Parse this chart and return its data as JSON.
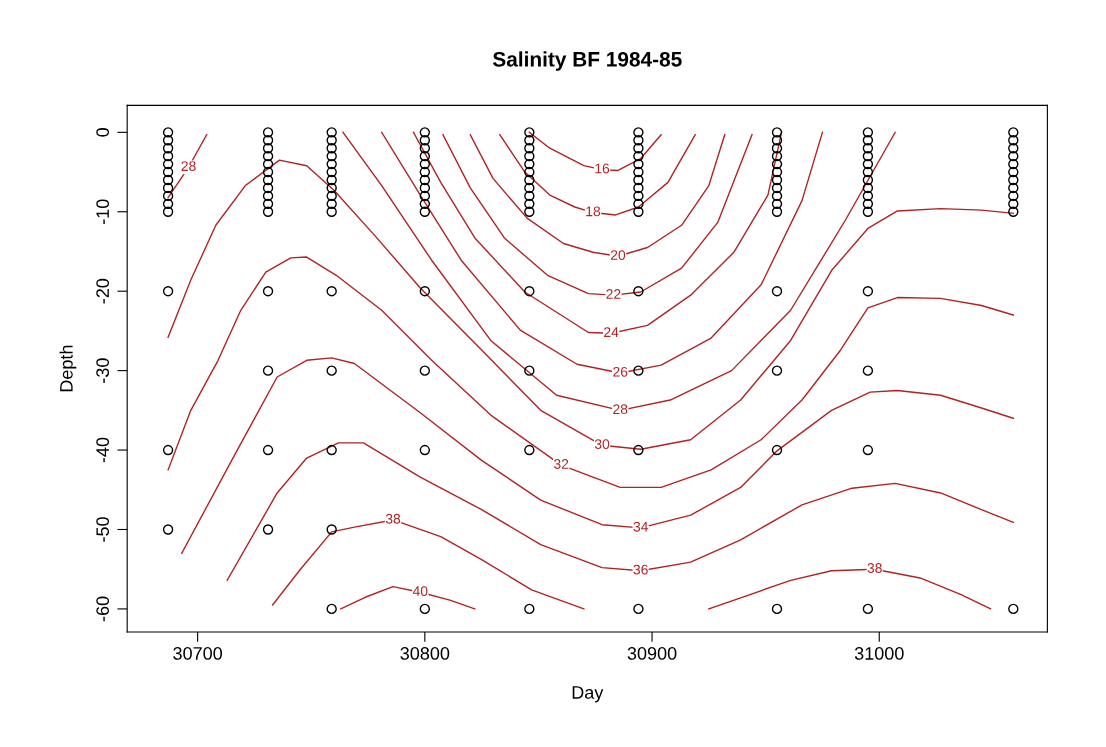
{
  "chart_data": {
    "type": "line",
    "title": "Salinity BF 1984-85",
    "xlabel": "Day",
    "ylabel": "Depth",
    "xlim": [
      30669,
      31074
    ],
    "ylim": [
      -62.9,
      3.4
    ],
    "xticks": [
      30700,
      30800,
      30900,
      31000
    ],
    "yticks": [
      0,
      -10,
      -20,
      -30,
      -40,
      -50,
      -60
    ],
    "grid": false,
    "legend": false,
    "series": [
      {
        "type": "scatter",
        "color": "#000000",
        "marker": "circle",
        "x": [
          30687,
          30687,
          30687,
          30687,
          30687,
          30687,
          30687,
          30687,
          30687,
          30687,
          30687,
          30687,
          30687,
          30687,
          30731,
          30731,
          30731,
          30731,
          30731,
          30731,
          30731,
          30731,
          30731,
          30731,
          30731,
          30731,
          30731,
          30731,
          30731,
          30759,
          30759,
          30759,
          30759,
          30759,
          30759,
          30759,
          30759,
          30759,
          30759,
          30759,
          30759,
          30759,
          30759,
          30759,
          30759,
          30800,
          30800,
          30800,
          30800,
          30800,
          30800,
          30800,
          30800,
          30800,
          30800,
          30800,
          30800,
          30800,
          30800,
          30800,
          30846,
          30846,
          30846,
          30846,
          30846,
          30846,
          30846,
          30846,
          30846,
          30846,
          30846,
          30846,
          30846,
          30846,
          30846,
          30894,
          30894,
          30894,
          30894,
          30894,
          30894,
          30894,
          30894,
          30894,
          30894,
          30894,
          30894,
          30894,
          30894,
          30894,
          30955,
          30955,
          30955,
          30955,
          30955,
          30955,
          30955,
          30955,
          30955,
          30955,
          30955,
          30955,
          30955,
          30955,
          30955,
          30995,
          30995,
          30995,
          30995,
          30995,
          30995,
          30995,
          30995,
          30995,
          30995,
          30995,
          30995,
          30995,
          30995,
          30995,
          31059,
          31059,
          31059,
          31059,
          31059,
          31059,
          31059,
          31059,
          31059,
          31059,
          31059,
          31059
        ],
        "values": [
          0,
          -1,
          -2,
          -3,
          -4,
          -5,
          -6,
          -7,
          -8,
          -9,
          -10,
          -20,
          -40,
          -50,
          0,
          -1,
          -2,
          -3,
          -4,
          -5,
          -6,
          -7,
          -8,
          -9,
          -10,
          -20,
          -30,
          -40,
          -50,
          0,
          -1,
          -2,
          -3,
          -4,
          -5,
          -6,
          -7,
          -8,
          -9,
          -10,
          -20,
          -30,
          -40,
          -50,
          -60,
          0,
          -1,
          -2,
          -3,
          -4,
          -5,
          -6,
          -7,
          -8,
          -9,
          -10,
          -20,
          -30,
          -40,
          -60,
          0,
          -1,
          -2,
          -3,
          -4,
          -5,
          -6,
          -7,
          -8,
          -9,
          -10,
          -20,
          -30,
          -40,
          -60,
          0,
          -1,
          -2,
          -3,
          -4,
          -5,
          -6,
          -7,
          -8,
          -9,
          -10,
          -20,
          -30,
          -40,
          -60,
          0,
          -1,
          -2,
          -3,
          -4,
          -5,
          -6,
          -7,
          -8,
          -9,
          -10,
          -20,
          -30,
          -40,
          -60,
          0,
          -1,
          -2,
          -3,
          -4,
          -5,
          -6,
          -7,
          -8,
          -9,
          -10,
          -20,
          -30,
          -40,
          -60,
          0,
          -1,
          -2,
          -3,
          -4,
          -5,
          -6,
          -7,
          -8,
          -9,
          -10,
          -60
        ]
      },
      {
        "name": "16",
        "color": "#b22222",
        "x": [
          30846,
          30855,
          30870,
          30878,
          30885,
          30895,
          30904
        ],
        "values": [
          0,
          -2.0,
          -4.2,
          -4.7,
          -4.8,
          -3.3,
          -0.3
        ]
      },
      {
        "name": "18",
        "color": "#b22222",
        "x": [
          30833,
          30844,
          30855,
          30866,
          30874,
          30884,
          30894,
          30907,
          30919
        ],
        "values": [
          -0.3,
          -5.0,
          -7.9,
          -9.4,
          -10.1,
          -10.4,
          -9.4,
          -6.3,
          -0.3
        ]
      },
      {
        "name": "20",
        "color": "#b22222",
        "x": [
          30820,
          30830,
          30845,
          30861,
          30874,
          30885,
          30898,
          30913,
          30925,
          30932
        ],
        "values": [
          -0.3,
          -5.8,
          -10.8,
          -14.0,
          -15.1,
          -15.6,
          -14.5,
          -11.7,
          -6.7,
          -0.3
        ]
      },
      {
        "name": "22",
        "color": "#b22222",
        "x": [
          30808,
          30820,
          30835,
          30854,
          30872,
          30883,
          30895,
          30913,
          30929,
          30944
        ],
        "values": [
          -0.3,
          -7.0,
          -13.3,
          -18.0,
          -20.3,
          -20.5,
          -20.1,
          -17.1,
          -11.3,
          -0.3
        ]
      },
      {
        "name": "24",
        "color": "#b22222",
        "x": [
          30795,
          30807,
          30822,
          30844,
          30872,
          30882,
          30898,
          30917,
          30936,
          30951,
          30957
        ],
        "values": [
          0,
          -6.3,
          -13.3,
          -20.1,
          -25.2,
          -25.3,
          -24.3,
          -20.5,
          -15.1,
          -7.9,
          0
        ]
      },
      {
        "name": "26",
        "color": "#b22222",
        "x": [
          30781,
          30798,
          30816,
          30842,
          30867,
          30886,
          30904,
          30926,
          30948,
          30966,
          30975
        ],
        "values": [
          0,
          -7.9,
          -16.1,
          -24.9,
          -29.2,
          -30.3,
          -29.3,
          -25.9,
          -19.2,
          -8.6,
          0
        ]
      },
      {
        "name": "28",
        "color": "#b22222",
        "x": [
          30764,
          30781,
          30803,
          30829,
          30858,
          30886,
          30908,
          30935,
          30961,
          30985,
          31007
        ],
        "values": [
          0,
          -6.7,
          -16.1,
          -26.2,
          -33.1,
          -35.0,
          -33.7,
          -30.0,
          -22.4,
          -11.1,
          0
        ]
      },
      {
        "name": "28",
        "color": "#b22222",
        "x": [
          30704,
          30696,
          30687
        ],
        "values": [
          -0.3,
          -4.4,
          -8.2
        ]
      },
      {
        "name": "30",
        "color": "#b22222",
        "x": [
          30687,
          30697,
          30708,
          30721,
          30736,
          30748,
          30760,
          30778,
          30798,
          30825,
          30851,
          30878,
          30895,
          30917,
          30939,
          30961,
          30979,
          30995,
          31008,
          31027,
          31045,
          31059
        ],
        "values": [
          -25.8,
          -18.6,
          -11.7,
          -6.7,
          -3.5,
          -4.2,
          -7.3,
          -13.0,
          -19.6,
          -27.4,
          -35.0,
          -39.4,
          -39.9,
          -38.7,
          -33.7,
          -26.2,
          -17.4,
          -12.1,
          -9.9,
          -9.6,
          -9.8,
          -10.2
        ]
      },
      {
        "name": "32",
        "color": "#b22222",
        "x": [
          30687,
          30697,
          30709,
          30719,
          30730,
          30741,
          30748,
          30761,
          30781,
          30803,
          30829,
          30860,
          30886,
          30904,
          30926,
          30948,
          30966,
          30983,
          30995,
          31008,
          31027,
          31045,
          31059
        ],
        "values": [
          -42.5,
          -35.0,
          -28.7,
          -22.4,
          -17.6,
          -15.8,
          -15.7,
          -18.0,
          -22.4,
          -28.7,
          -35.6,
          -41.9,
          -44.7,
          -44.7,
          -42.5,
          -38.7,
          -33.7,
          -27.4,
          -22.1,
          -20.8,
          -20.9,
          -21.8,
          -23.0
        ]
      },
      {
        "name": "34",
        "color": "#b22222",
        "x": [
          30693,
          30715,
          30735,
          30748,
          30759,
          30769,
          30798,
          30825,
          30851,
          30878,
          30895,
          30917,
          30939,
          30955,
          30979,
          30996,
          31008,
          31027,
          31045,
          31059
        ],
        "values": [
          -53.0,
          -41.3,
          -30.8,
          -28.7,
          -28.4,
          -29.1,
          -35.3,
          -41.3,
          -46.3,
          -49.4,
          -49.8,
          -48.2,
          -44.7,
          -40.1,
          -35.0,
          -32.7,
          -32.5,
          -33.1,
          -34.7,
          -36.0
        ]
      },
      {
        "name": "36",
        "color": "#b22222",
        "x": [
          30713,
          30735,
          30748,
          30762,
          30773,
          30798,
          30825,
          30851,
          30878,
          30895,
          30917,
          30939,
          30966,
          30988,
          31007,
          31027,
          31045,
          31059
        ],
        "values": [
          -56.4,
          -45.4,
          -41.0,
          -39.1,
          -39.1,
          -43.4,
          -47.5,
          -51.9,
          -54.8,
          -55.2,
          -54.1,
          -51.3,
          -46.9,
          -44.8,
          -44.2,
          -45.4,
          -47.5,
          -49.1
        ]
      },
      {
        "name": "38",
        "color": "#b22222",
        "x": [
          30733,
          30745,
          30759,
          30769,
          30786,
          30807,
          30825,
          30847,
          30870
        ],
        "values": [
          -59.5,
          -55.1,
          -50.3,
          -49.7,
          -48.8,
          -50.9,
          -53.8,
          -57.6,
          -60
        ]
      },
      {
        "name": "38",
        "color": "#b22222",
        "x": [
          30925,
          30939,
          30961,
          30979,
          30998,
          31018,
          31036,
          31049
        ],
        "values": [
          -60,
          -58.6,
          -56.4,
          -55.2,
          -55.0,
          -56.1,
          -58.2,
          -60
        ]
      },
      {
        "name": "40",
        "color": "#b22222",
        "x": [
          30763,
          30774,
          30786,
          30798,
          30811,
          30822
        ],
        "values": [
          -60,
          -58.5,
          -57.2,
          -57.9,
          -58.9,
          -60
        ]
      }
    ]
  }
}
